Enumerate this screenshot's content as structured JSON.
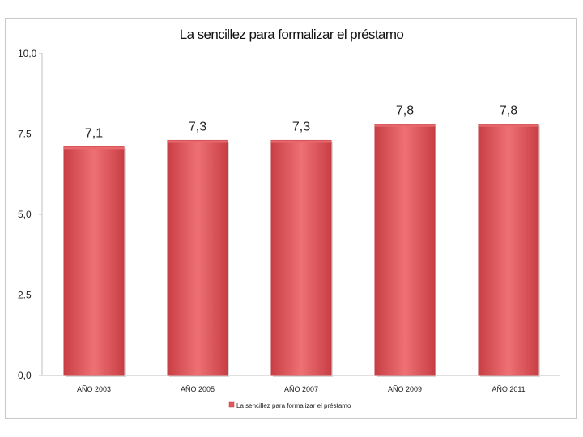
{
  "chart_data": {
    "type": "bar",
    "title": "La sencillez para formalizar el préstamo",
    "categories": [
      "AÑO 2003",
      "AÑO 2005",
      "AÑO 2007",
      "AÑO 2009",
      "AÑO 2011"
    ],
    "values": [
      7.1,
      7.3,
      7.3,
      7.8,
      7.8
    ],
    "data_labels": [
      "7,1",
      "7,3",
      "7,3",
      "7,8",
      "7,8"
    ],
    "series": [
      {
        "name": "La sencillez para formalizar el préstamo",
        "values": [
          7.1,
          7.3,
          7.3,
          7.8,
          7.8
        ]
      }
    ],
    "ylim": [
      0,
      10
    ],
    "yticks": [
      0,
      2.5,
      5,
      7.5,
      10
    ],
    "ytick_labels": [
      "0,0",
      "2.5",
      "5,0",
      "7.5",
      "10,0"
    ],
    "xlabel": "",
    "ylabel": "",
    "legend": {
      "position": "bottom",
      "entries": [
        "La sencillez para formalizar el préstamo"
      ]
    },
    "grid": false,
    "colors": {
      "bar_edge": "#c23a3f",
      "bar_center": "#ec6b70",
      "bar_side": "#cf464b",
      "axis": "#bfbfbf"
    }
  }
}
